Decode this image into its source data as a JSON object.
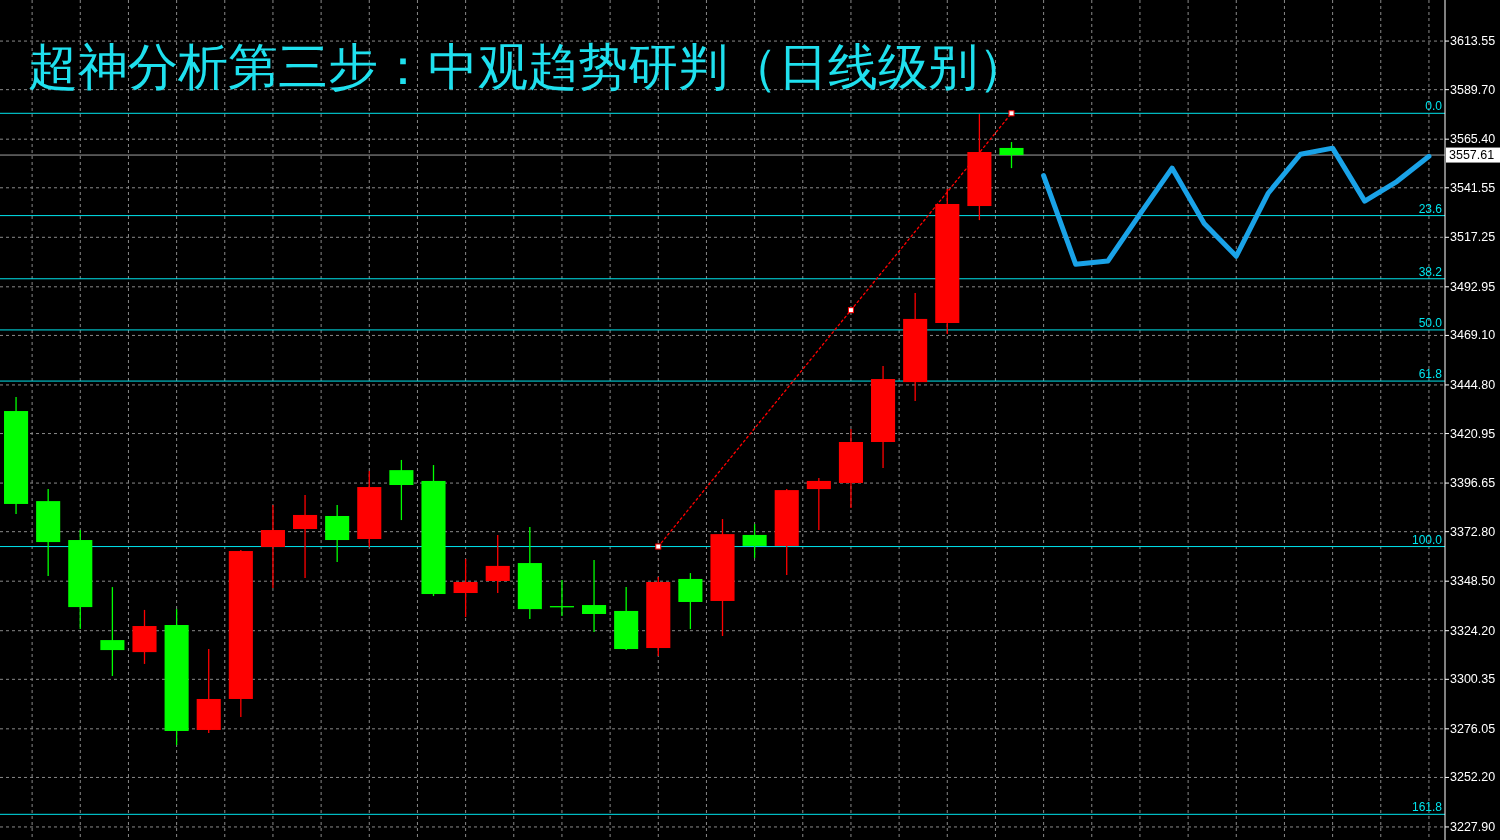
{
  "chart_data": {
    "type": "candlestick",
    "title": "超神分析第三步：中观趋势研判（日线级别）",
    "categories": [
      null,
      null,
      null,
      null,
      null,
      null,
      null,
      null,
      null,
      null,
      null,
      null,
      null,
      null,
      null,
      null,
      null,
      null,
      null,
      null,
      null,
      null,
      null,
      null,
      null,
      null,
      null,
      null,
      null,
      null,
      null,
      null,
      null,
      null,
      null,
      null,
      null,
      null,
      null,
      null,
      null,
      null,
      null,
      null,
      null
    ],
    "series": [
      {
        "type": "line",
        "color": "#ff0000",
        "line_style": "dotted",
        "values": [
          null,
          null,
          null,
          null,
          null,
          null,
          null,
          null,
          null,
          null,
          null,
          null,
          null,
          null,
          null,
          null,
          null,
          null,
          null,
          null,
          3365.5,
          3384.8,
          3404.2,
          3423.5,
          3442.8,
          3462.2,
          3481.5,
          3500.8,
          3520.1,
          3539.5,
          3558.8,
          3578.1,
          null,
          null,
          null,
          null,
          null,
          null,
          null,
          null,
          null,
          null,
          null,
          null,
          null
        ]
      },
      {
        "type": "line",
        "color": "#1aa3e8",
        "line_style": "solid",
        "values": [
          null,
          null,
          null,
          null,
          null,
          null,
          null,
          null,
          null,
          null,
          null,
          null,
          null,
          null,
          null,
          null,
          null,
          null,
          null,
          null,
          null,
          null,
          null,
          null,
          null,
          null,
          null,
          null,
          null,
          null,
          null,
          null,
          3547.5,
          3504.0,
          3505.6,
          3528.6,
          3551.2,
          3524.0,
          3508.0,
          3539.0,
          3558.0,
          3561.0,
          3535.0,
          3544.6,
          3557.0
        ]
      }
    ],
    "ohlc": [
      [
        3432.0,
        3438.9,
        3381.5,
        3386.4
      ],
      [
        3387.8,
        3393.7,
        3351.0,
        3367.7
      ],
      [
        3368.7,
        3373.6,
        3325.0,
        3335.8
      ],
      [
        3319.6,
        3345.6,
        3302.0,
        3314.7
      ],
      [
        3313.7,
        3334.4,
        3307.9,
        3326.5
      ],
      [
        3327.0,
        3334.8,
        3268.1,
        3275.0
      ],
      [
        3275.5,
        3315.2,
        3274.0,
        3290.7
      ],
      [
        3290.7,
        3363.8,
        3281.9,
        3363.3
      ],
      [
        3365.3,
        3385.9,
        3345.2,
        3373.6
      ],
      [
        3374.1,
        3390.8,
        3350.1,
        3381.0
      ],
      [
        3380.5,
        3385.9,
        3357.9,
        3368.7
      ],
      [
        3369.2,
        3402.6,
        3365.3,
        3394.7
      ],
      [
        3403.0,
        3408.0,
        3378.5,
        3395.7
      ],
      [
        3397.7,
        3405.5,
        3341.2,
        3342.2
      ],
      [
        3342.7,
        3359.4,
        3330.9,
        3348.1
      ],
      [
        3348.6,
        3371.2,
        3342.7,
        3356.0
      ],
      [
        3357.4,
        3375.1,
        3330.0,
        3334.8
      ],
      [
        3336.3,
        3349.1,
        3331.4,
        3336.3
      ],
      [
        3336.8,
        3358.9,
        3323.6,
        3332.4
      ],
      [
        3333.9,
        3345.6,
        3314.7,
        3315.2
      ],
      [
        3315.7,
        3350.5,
        3311.8,
        3348.1
      ],
      [
        3349.6,
        3352.5,
        3325.0,
        3338.3
      ],
      [
        3338.8,
        3379.0,
        3321.6,
        3371.6
      ],
      [
        3371.2,
        3376.5,
        3359.9,
        3365.8
      ],
      [
        3365.8,
        3393.7,
        3351.5,
        3393.2
      ],
      [
        3393.7,
        3399.1,
        3373.6,
        3397.7
      ],
      [
        3396.7,
        3423.2,
        3384.4,
        3416.8
      ],
      [
        3416.8,
        3454.1,
        3404.0,
        3447.7
      ],
      [
        3446.2,
        3489.9,
        3436.9,
        3477.2
      ],
      [
        3475.2,
        3540.9,
        3469.8,
        3533.6
      ],
      [
        3532.6,
        3577.7,
        3525.7,
        3559.1
      ],
      [
        3561.1,
        3564.0,
        3551.2,
        3557.6
      ],
      null,
      null,
      null,
      null,
      null,
      null,
      null,
      null,
      null,
      null,
      null,
      null,
      null
    ],
    "colors": [
      "#00ff00",
      "#00ff00",
      "#00ff00",
      "#00ff00",
      "#ff0000",
      "#00ff00",
      "#ff0000",
      "#ff0000",
      "#ff0000",
      "#ff0000",
      "#00ff00",
      "#ff0000",
      "#00ff00",
      "#00ff00",
      "#ff0000",
      "#ff0000",
      "#00ff00",
      "#00ff00",
      "#00ff00",
      "#00ff00",
      "#ff0000",
      "#00ff00",
      "#ff0000",
      "#00ff00",
      "#ff0000",
      "#ff0000",
      "#ff0000",
      "#ff0000",
      "#ff0000",
      "#ff0000",
      "#ff0000",
      "#00ff00",
      null,
      null,
      null,
      null,
      null,
      null,
      null,
      null,
      null,
      null,
      null,
      null,
      null
    ],
    "ylim": [
      3221.5,
      3633.7
    ],
    "yticks": [
      3613.55,
      {
        "value": 3589.7,
        "label": "3589.70"
      },
      {
        "value": 3565.4,
        "label": "3565.40"
      },
      3541.55,
      3517.25,
      3492.95,
      {
        "value": 3469.1,
        "label": "3469.10"
      },
      {
        "value": 3444.8,
        "label": "3444.80"
      },
      3420.95,
      3396.65,
      {
        "value": 3372.8,
        "label": "3372.80"
      },
      {
        "value": 3348.5,
        "label": "3348.50"
      },
      {
        "value": 3324.2,
        "label": "3324.20"
      },
      3300.35,
      3276.05,
      {
        "value": 3252.2,
        "label": "3252.20"
      },
      {
        "value": 3227.9,
        "label": "3227.90"
      }
    ],
    "ref_lines": [
      {
        "axis": "y",
        "value": 3557.61,
        "label": "3557.61",
        "color": "#a0a0a0"
      },
      {
        "axis": "y",
        "value": 3578.1,
        "color": "#00e5ee"
      },
      {
        "axis": "y",
        "value": 3527.9,
        "color": "#00e5ee"
      },
      {
        "axis": "y",
        "value": 3496.9,
        "color": "#00e5ee"
      },
      {
        "axis": "y",
        "value": 3471.8,
        "color": "#00e5ee"
      },
      {
        "axis": "y",
        "value": 3446.7,
        "color": "#00e5ee"
      },
      {
        "axis": "y",
        "value": 3365.5,
        "color": "#00e5ee"
      },
      {
        "axis": "y",
        "value": 3234.1,
        "color": "#00e5ee"
      }
    ],
    "annotations": [
      {
        "text": "0.0",
        "y": 3578.1
      },
      {
        "text": "23.6",
        "y": 3527.9
      },
      {
        "text": "38.2",
        "y": 3496.9
      },
      {
        "text": "50.0",
        "y": 3471.8
      },
      {
        "text": "61.8",
        "y": 3446.7
      },
      {
        "text": "100.0",
        "y": 3365.5
      },
      {
        "text": "161.8",
        "y": 3234.1
      }
    ],
    "grid": true,
    "tick_labels": "y"
  }
}
